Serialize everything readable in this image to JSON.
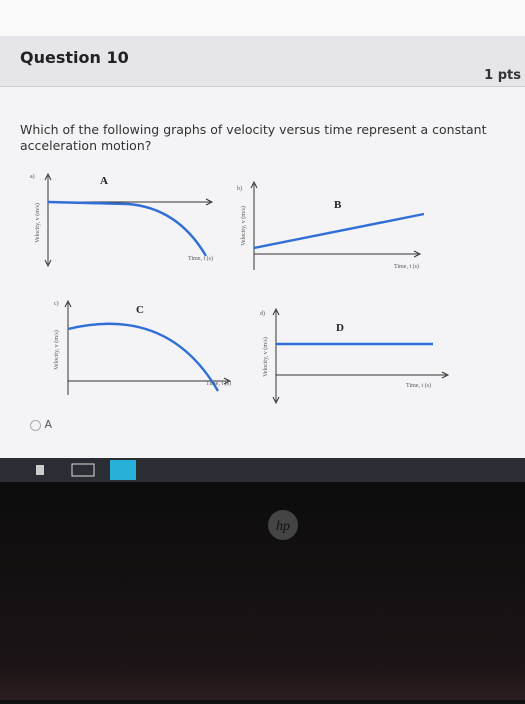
{
  "header": {
    "title": "Question 10",
    "points": "1 pts"
  },
  "question": "Which of the following graphs of velocity versus time represent a constant acceleration motion?",
  "graphs": [
    {
      "tag": "a)",
      "label": "A",
      "y_axis": "Velocity, v (m/s)",
      "x_axis": "Time, t (s)"
    },
    {
      "tag": "b)",
      "label": "B",
      "y_axis": "Velocity, v (m/s)",
      "x_axis": "Time, t (s)"
    },
    {
      "tag": "c)",
      "label": "C",
      "y_axis": "Velocity, v (m/s)",
      "x_axis": "Time, t (s)"
    },
    {
      "tag": "d)",
      "label": "D",
      "y_axis": "Velocity, v (m/s)",
      "x_axis": "Time, t (s)"
    }
  ],
  "options": [
    "A"
  ],
  "logo": "hp"
}
